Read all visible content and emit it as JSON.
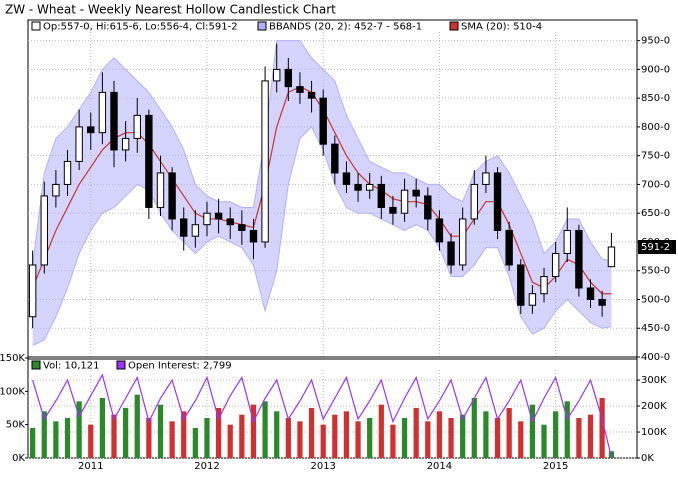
{
  "chart_data": [
    {
      "type": "candlestick",
      "title": "ZW - Wheat - Weekly Nearest Hollow Candlestick Chart",
      "x": [
        2010.5,
        2010.6,
        2010.7,
        2010.8,
        2010.9,
        2011.0,
        2011.1,
        2011.2,
        2011.3,
        2011.4,
        2011.5,
        2011.6,
        2011.7,
        2011.8,
        2011.9,
        2012.0,
        2012.1,
        2012.2,
        2012.3,
        2012.4,
        2012.5,
        2012.6,
        2012.7,
        2012.8,
        2012.9,
        2013.0,
        2013.1,
        2013.2,
        2013.3,
        2013.4,
        2013.5,
        2013.6,
        2013.7,
        2013.8,
        2013.9,
        2014.0,
        2014.1,
        2014.2,
        2014.3,
        2014.4,
        2014.5,
        2014.6,
        2014.7,
        2014.8,
        2014.9,
        2015.0,
        2015.1,
        2015.2,
        2015.3,
        2015.4,
        2015.48
      ],
      "series": [
        {
          "name": "Op:557-0, Hi:615-6, Lo:556-4, Cl:591-2",
          "color": "#000000",
          "open": [
            470,
            560,
            680,
            700,
            740,
            800,
            790,
            860,
            760,
            780,
            820,
            660,
            720,
            640,
            610,
            630,
            650,
            640,
            630,
            620,
            600,
            880,
            900,
            870,
            860,
            850,
            770,
            720,
            700,
            690,
            700,
            660,
            650,
            690,
            680,
            640,
            600,
            560,
            640,
            700,
            720,
            620,
            560,
            490,
            510,
            540,
            580,
            620,
            520,
            500,
            557
          ],
          "high": [
            585,
            705,
            725,
            760,
            830,
            825,
            895,
            880,
            810,
            850,
            830,
            750,
            730,
            660,
            655,
            670,
            675,
            660,
            655,
            640,
            905,
            945,
            920,
            895,
            880,
            865,
            785,
            740,
            720,
            720,
            715,
            680,
            710,
            710,
            695,
            655,
            615,
            660,
            725,
            750,
            730,
            635,
            570,
            525,
            555,
            600,
            660,
            630,
            535,
            515,
            615.75
          ],
          "low": [
            450,
            545,
            660,
            680,
            725,
            760,
            770,
            730,
            740,
            755,
            640,
            645,
            620,
            585,
            590,
            610,
            615,
            605,
            595,
            570,
            590,
            860,
            845,
            840,
            825,
            750,
            700,
            685,
            670,
            675,
            640,
            630,
            635,
            660,
            620,
            585,
            545,
            550,
            630,
            685,
            605,
            550,
            475,
            475,
            495,
            530,
            565,
            505,
            485,
            470,
            556.5
          ],
          "close": [
            560,
            680,
            700,
            740,
            800,
            790,
            860,
            760,
            780,
            820,
            660,
            720,
            640,
            610,
            630,
            650,
            640,
            630,
            620,
            600,
            880,
            900,
            870,
            860,
            850,
            770,
            720,
            700,
            690,
            700,
            660,
            650,
            690,
            680,
            640,
            600,
            560,
            640,
            700,
            720,
            620,
            560,
            490,
            510,
            540,
            580,
            620,
            520,
            500,
            490,
            591.25
          ]
        },
        {
          "name": "BBANDS (20, 2): 452-7 - 568-1",
          "color": "#b0b0ff",
          "upper": [
            560,
            720,
            780,
            800,
            830,
            860,
            900,
            920,
            900,
            880,
            860,
            830,
            800,
            760,
            700,
            680,
            670,
            670,
            660,
            660,
            780,
            950,
            950,
            950,
            920,
            900,
            880,
            820,
            780,
            740,
            730,
            720,
            720,
            710,
            700,
            700,
            680,
            670,
            720,
            740,
            750,
            720,
            680,
            640,
            580,
            600,
            640,
            640,
            600,
            570,
            568
          ],
          "lower": [
            420,
            430,
            470,
            520,
            580,
            620,
            650,
            660,
            680,
            700,
            690,
            650,
            620,
            600,
            580,
            600,
            610,
            600,
            590,
            560,
            480,
            550,
            700,
            780,
            800,
            760,
            700,
            660,
            650,
            650,
            640,
            630,
            620,
            630,
            620,
            590,
            540,
            540,
            560,
            590,
            590,
            540,
            470,
            440,
            450,
            480,
            500,
            480,
            460,
            450,
            452.875
          ]
        },
        {
          "name": "SMA (20): 510-4",
          "color": "#cc3333",
          "values": [
            520,
            570,
            620,
            660,
            700,
            730,
            760,
            780,
            790,
            790,
            770,
            740,
            710,
            680,
            650,
            640,
            640,
            635,
            630,
            625,
            700,
            800,
            860,
            870,
            860,
            830,
            790,
            750,
            720,
            700,
            690,
            675,
            670,
            670,
            665,
            640,
            610,
            610,
            640,
            670,
            670,
            630,
            580,
            530,
            520,
            540,
            570,
            560,
            530,
            510,
            510
          ]
        }
      ],
      "xlim": [
        2010.46,
        2015.7
      ],
      "xticks": [
        2011,
        2012,
        2013,
        2014,
        2015
      ],
      "ylim": [
        400,
        965
      ],
      "yticks": [
        {
          "value": 400,
          "label": "400-0"
        },
        {
          "value": 450,
          "label": "450-0"
        },
        {
          "value": 500,
          "label": "500-0"
        },
        {
          "value": 550,
          "label": "550-0"
        },
        {
          "value": 600,
          "label": "600-0"
        },
        {
          "value": 650,
          "label": "650-0"
        },
        {
          "value": 700,
          "label": "700-0"
        },
        {
          "value": 750,
          "label": "750-0"
        },
        {
          "value": 800,
          "label": "800-0"
        },
        {
          "value": 850,
          "label": "850-0"
        },
        {
          "value": 900,
          "label": "900-0"
        },
        {
          "value": 950,
          "label": "950-0"
        }
      ],
      "grid": true,
      "last_price": {
        "value": 591.25,
        "label": "591-2"
      }
    },
    {
      "type": "volume",
      "series": [
        {
          "name": "Vol: 10,121",
          "color": "#2a8a2a",
          "down_color": "#d03030",
          "values": [
            45000,
            70000,
            55000,
            60000,
            85000,
            50000,
            90000,
            65000,
            75000,
            95000,
            60000,
            80000,
            55000,
            70000,
            45000,
            60000,
            75000,
            50000,
            65000,
            80000,
            85000,
            70000,
            60000,
            55000,
            75000,
            50000,
            65000,
            70000,
            55000,
            60000,
            80000,
            50000,
            60000,
            75000,
            55000,
            70000,
            60000,
            65000,
            90000,
            70000,
            60000,
            75000,
            55000,
            80000,
            50000,
            70000,
            85000,
            60000,
            65000,
            90000,
            10121
          ]
        },
        {
          "name": "Open Interest: 2,799",
          "color": "#9933ff",
          "axis": "y2",
          "values": [
            300000,
            150000,
            220000,
            300000,
            160000,
            240000,
            320000,
            150000,
            230000,
            310000,
            140000,
            230000,
            300000,
            150000,
            220000,
            310000,
            150000,
            240000,
            310000,
            140000,
            230000,
            300000,
            150000,
            220000,
            300000,
            150000,
            230000,
            310000,
            150000,
            220000,
            300000,
            140000,
            230000,
            310000,
            150000,
            220000,
            300000,
            150000,
            230000,
            310000,
            150000,
            220000,
            300000,
            140000,
            230000,
            310000,
            150000,
            220000,
            300000,
            150000,
            2799
          ]
        }
      ],
      "ylim": [
        0,
        150000
      ],
      "yticks": [
        {
          "value": 0,
          "label": "0K"
        },
        {
          "value": 50000,
          "label": "50K"
        },
        {
          "value": 100000,
          "label": "100K"
        },
        {
          "value": 150000,
          "label": "150K"
        }
      ],
      "y2lim": [
        0,
        385000
      ],
      "y2ticks": [
        {
          "value": 0,
          "label": "0K"
        },
        {
          "value": 100000,
          "label": "100K"
        },
        {
          "value": 200000,
          "label": "200K"
        },
        {
          "value": 300000,
          "label": "300K"
        }
      ]
    }
  ]
}
